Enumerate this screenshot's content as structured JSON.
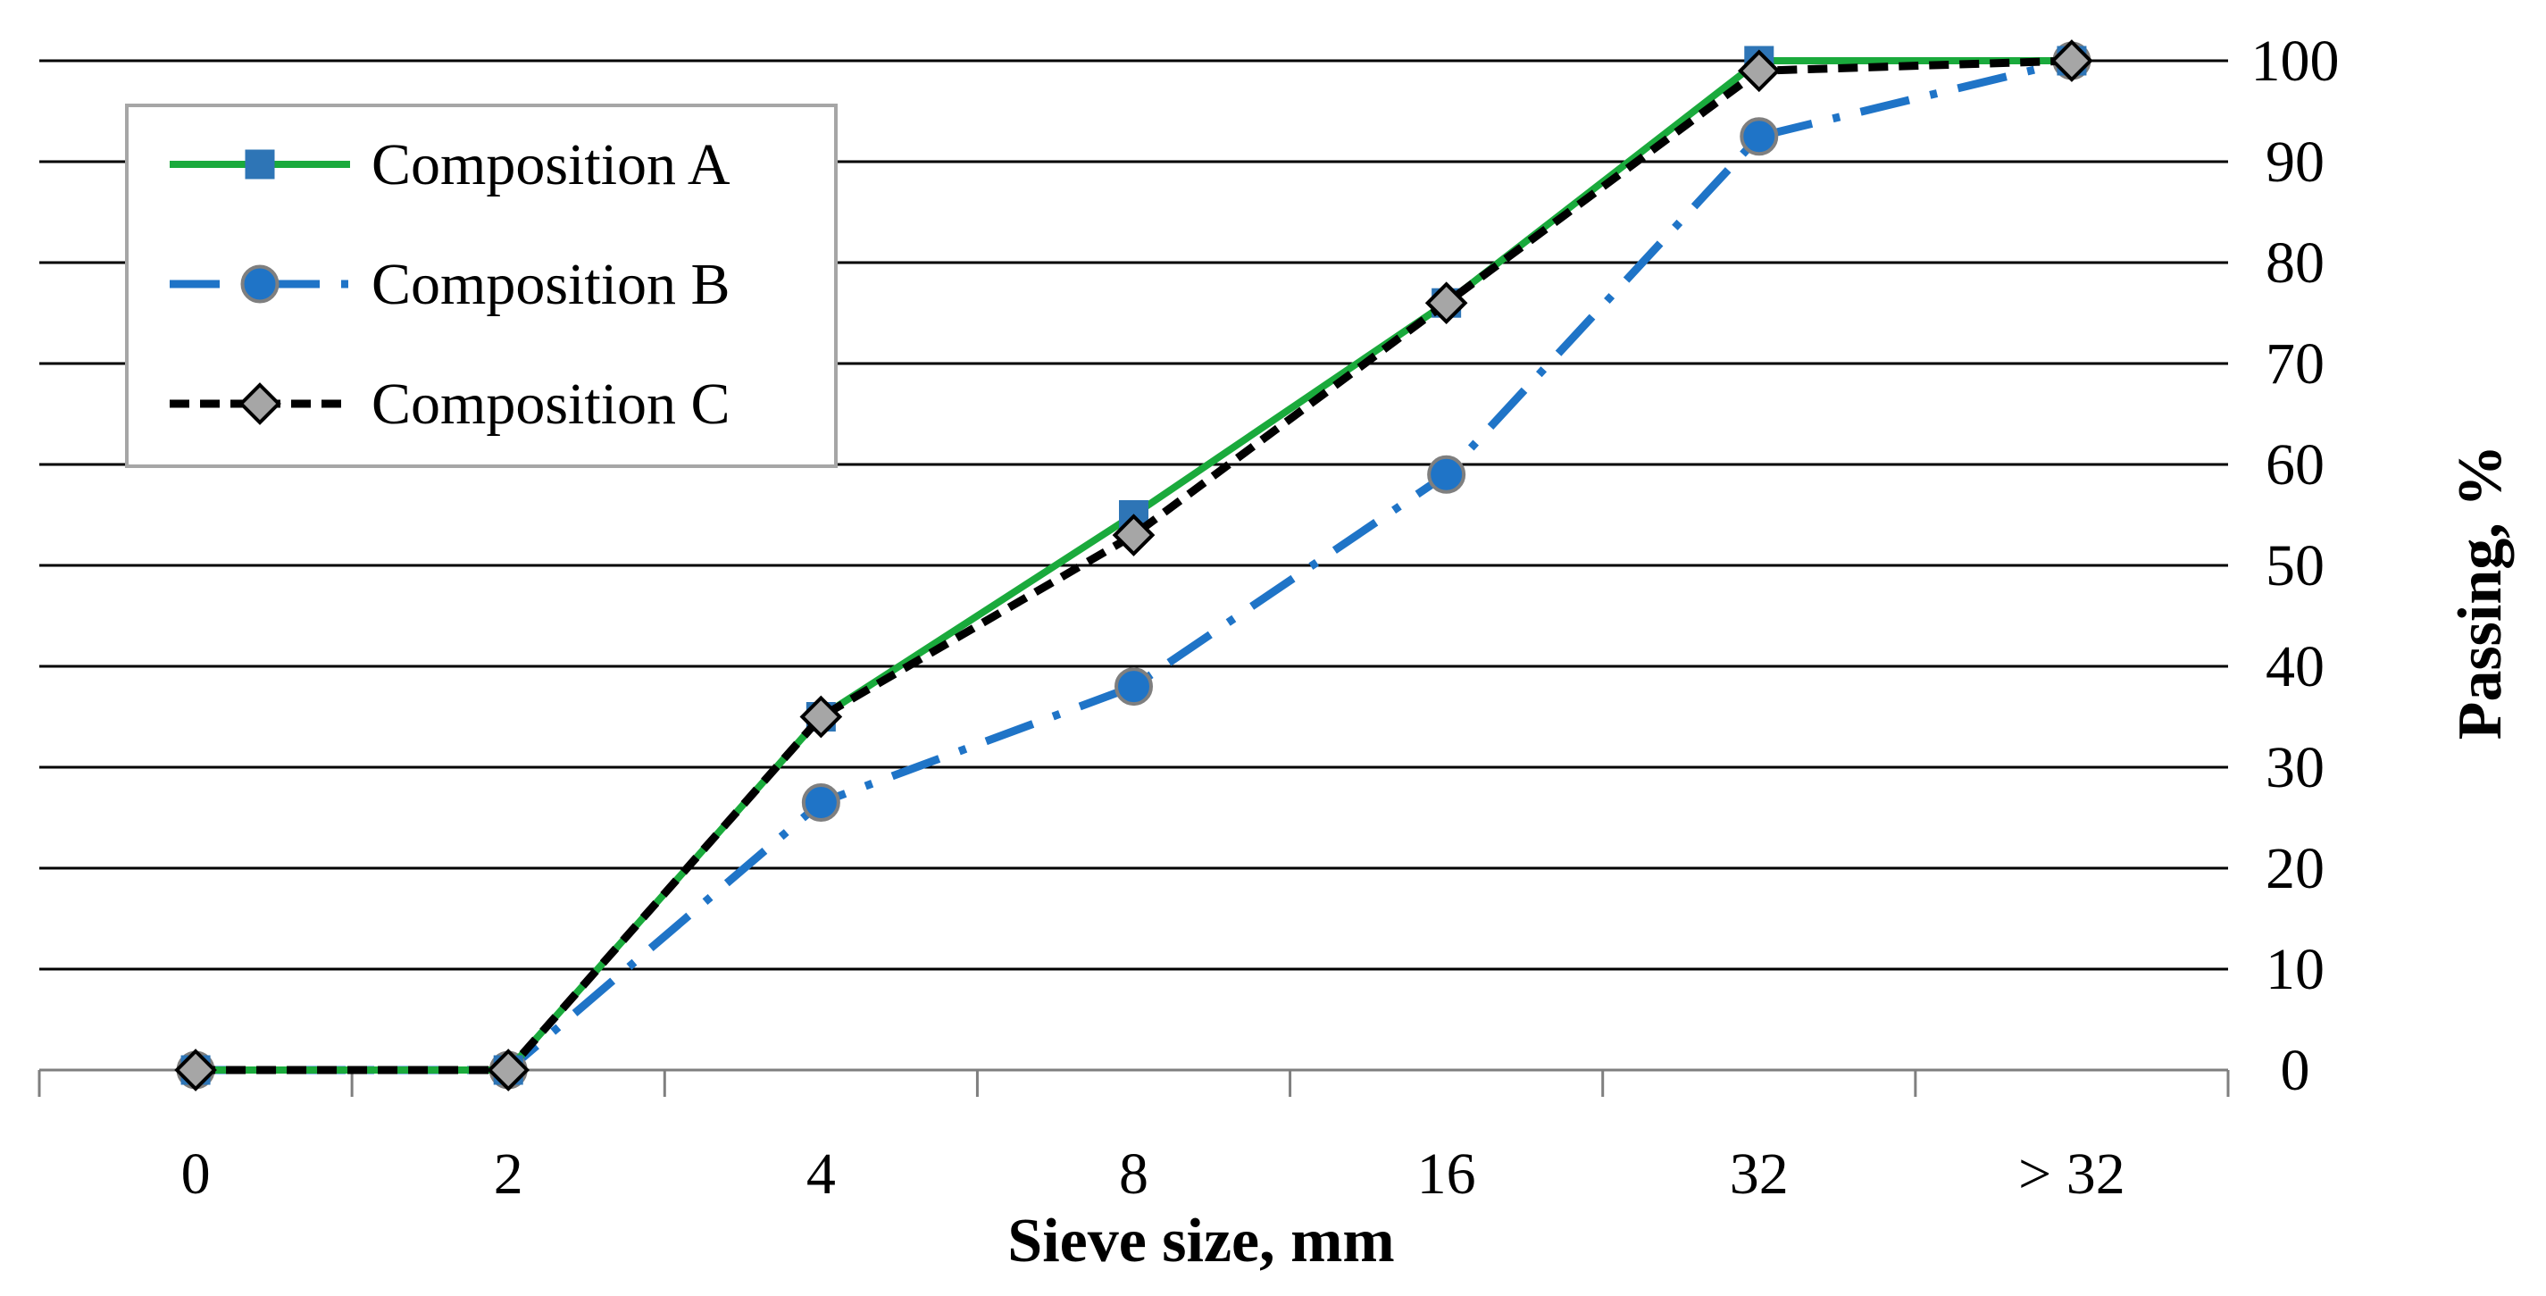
{
  "chart_data": {
    "type": "line",
    "categories": [
      "0",
      "2",
      "4",
      "8",
      "16",
      "32",
      "> 32"
    ],
    "xlabel": "Sieve size, mm",
    "ylabel": "Passing, %",
    "ylim": [
      0,
      100
    ],
    "yticks": [
      "0",
      "10",
      "20",
      "30",
      "40",
      "50",
      "60",
      "70",
      "80",
      "90",
      "100"
    ],
    "y_axis_side": "right",
    "grid": true,
    "legend_position": "top-left",
    "series": [
      {
        "name": "Composition A",
        "values": [
          0,
          0,
          35,
          55,
          76,
          100,
          100
        ],
        "color": "#1aaa3c",
        "line_style": "solid",
        "marker": "square",
        "marker_color": "#2e75b6"
      },
      {
        "name": "Composition B",
        "values": [
          0,
          0,
          26.5,
          38,
          59,
          92.5,
          100
        ],
        "color": "#1f74c7",
        "line_style": "dash-dot",
        "marker": "circle",
        "marker_color": "#1f74c7"
      },
      {
        "name": "Composition C",
        "values": [
          0,
          0,
          35,
          53,
          76,
          99,
          100
        ],
        "color": "#000000",
        "line_style": "dashed",
        "marker": "diamond",
        "marker_color": "#a6a6a6"
      }
    ]
  }
}
